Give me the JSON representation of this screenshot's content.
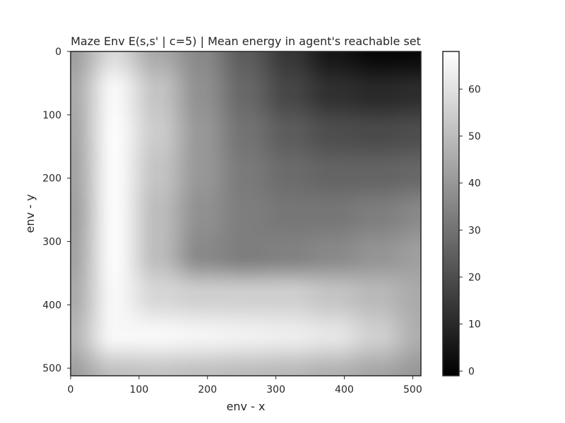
{
  "chart_data": {
    "type": "heatmap",
    "title": "Maze Env E(s,s' | c=5) | Mean energy in agent's reachable set",
    "xlabel": "env - x",
    "ylabel": "env - y",
    "x_range": [
      0,
      512
    ],
    "y_range": [
      0,
      512
    ],
    "y_inverted": true,
    "x_ticks": [
      "0",
      "100",
      "200",
      "300",
      "400",
      "500"
    ],
    "y_ticks": [
      "0",
      "100",
      "200",
      "300",
      "400",
      "500"
    ],
    "colormap": "gray",
    "colorbar": {
      "range": [
        -1,
        68
      ],
      "ticks": [
        "0",
        "10",
        "20",
        "30",
        "40",
        "50",
        "60"
      ]
    },
    "grid": false,
    "field": {
      "grid_x": [
        0,
        64,
        128,
        192,
        256,
        320,
        384,
        448,
        512
      ],
      "grid_y": [
        0,
        64,
        128,
        192,
        256,
        320,
        384,
        448,
        512
      ],
      "values": [
        [
          42,
          58,
          45,
          36,
          24,
          14,
          5,
          1,
          1
        ],
        [
          45,
          66,
          52,
          38,
          27,
          18,
          12,
          10,
          11
        ],
        [
          44,
          67,
          54,
          40,
          30,
          24,
          20,
          19,
          20
        ],
        [
          43,
          67,
          52,
          40,
          32,
          28,
          26,
          26,
          27
        ],
        [
          42,
          67,
          50,
          38,
          33,
          31,
          31,
          33,
          36
        ],
        [
          43,
          67,
          50,
          36,
          33,
          34,
          36,
          39,
          42
        ],
        [
          45,
          66,
          57,
          55,
          55,
          55,
          52,
          49,
          45
        ],
        [
          48,
          66,
          66,
          65,
          64,
          63,
          61,
          55,
          46
        ],
        [
          42,
          51,
          52,
          51,
          50,
          49,
          47,
          44,
          40
        ]
      ]
    }
  }
}
